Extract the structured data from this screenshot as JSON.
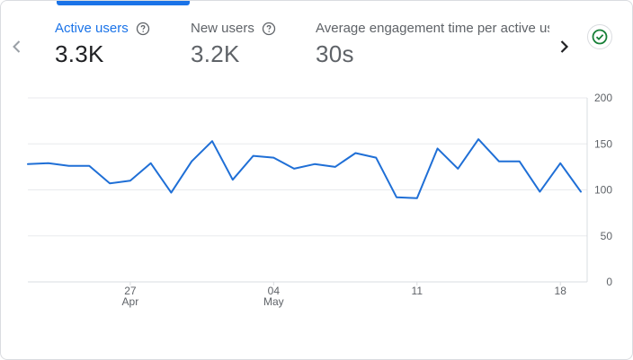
{
  "tabs": [
    {
      "label": "Active users",
      "value": "3.3K",
      "active": true
    },
    {
      "label": "New users",
      "value": "3.2K",
      "active": false
    },
    {
      "label": "Average engagement time per active us",
      "value": "30s",
      "active": false
    }
  ],
  "icons": {
    "prev": "chevron-left-icon",
    "next": "chevron-right-icon",
    "status": "check-circle-icon",
    "help": "help-circle-icon"
  },
  "colors": {
    "accent": "#1a73e8",
    "line": "#1f6fd6",
    "status": "#188038",
    "grid": "#e8eaed",
    "text_muted": "#5f6368"
  },
  "chart_data": {
    "type": "line",
    "series": [
      {
        "values": [
          128,
          129,
          126,
          126,
          107,
          110,
          129,
          97,
          131,
          153,
          111,
          137,
          135,
          123,
          128,
          125,
          140,
          135,
          92,
          91,
          145,
          123,
          155,
          131,
          131,
          98,
          129,
          98
        ]
      }
    ],
    "ylim": [
      0,
      200
    ],
    "yticks": [
      "200",
      "150",
      "100",
      "50",
      "0"
    ],
    "xticks": [
      {
        "index": 5,
        "day": "27",
        "month": "Apr"
      },
      {
        "index": 12,
        "day": "04",
        "month": "May"
      },
      {
        "index": 19,
        "day": "11",
        "month": ""
      },
      {
        "index": 26,
        "day": "18",
        "month": ""
      }
    ],
    "grid": true
  }
}
